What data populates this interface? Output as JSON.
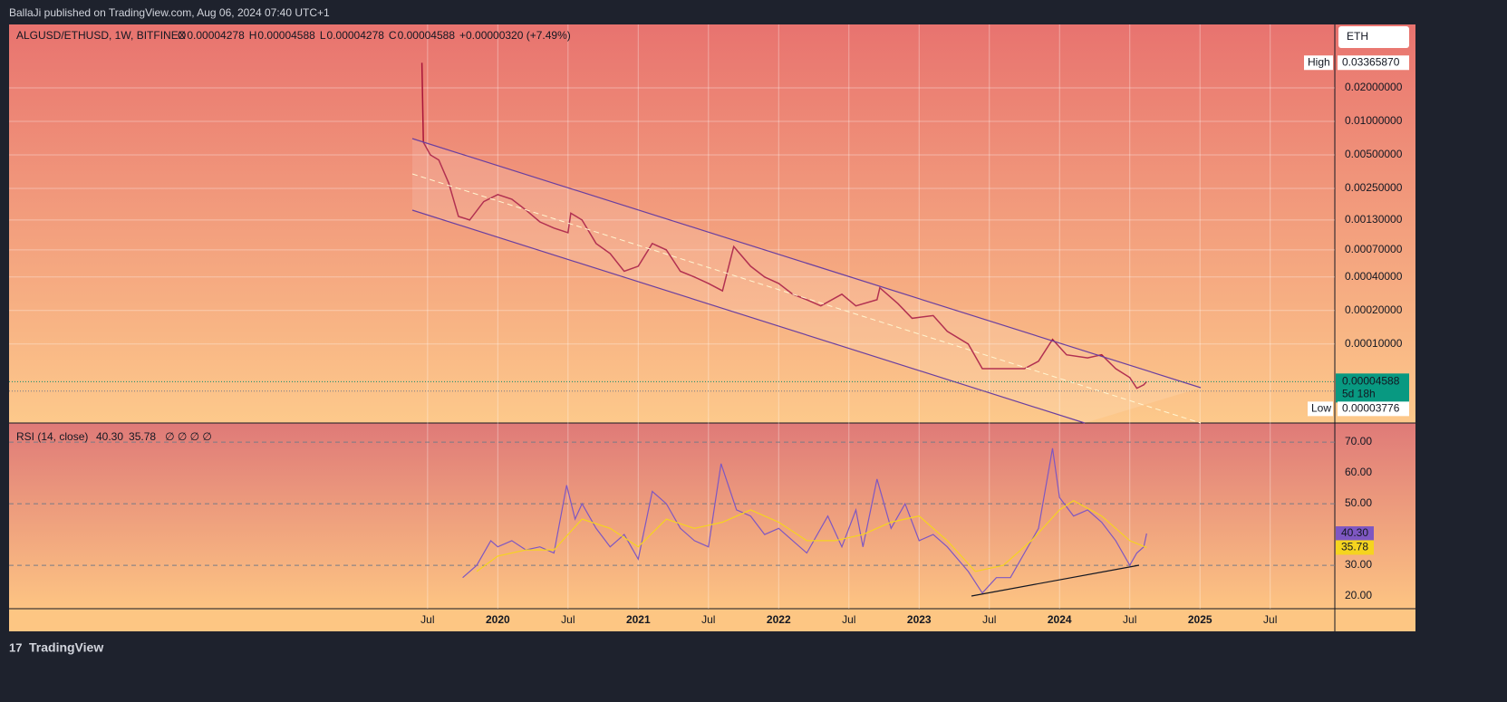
{
  "header": "BallaJi published on TradingView.com, Aug 06, 2024 07:40 UTC+1",
  "footer": "TradingView",
  "currency": "ETH",
  "chart_data": [
    {
      "type": "line",
      "title": "ALGUSD/ETHUSD, 1W, BITFINEX",
      "ohlc": [
        {
          "label": "O",
          "value": "0.00004278"
        },
        {
          "label": "H",
          "value": "0.00004588"
        },
        {
          "label": "L",
          "value": "0.00004278"
        },
        {
          "label": "C",
          "value": "0.00004588"
        }
      ],
      "change": "+0.00000320 (+7.49%)",
      "log_scale": true,
      "grid": true,
      "xlim": [
        2016.52,
        2025.96
      ],
      "xticks": [
        {
          "value": 2019.5,
          "label": "Jul"
        },
        2020,
        {
          "value": 2020.5,
          "label": "Jul"
        },
        2021,
        {
          "value": 2021.5,
          "label": "Jul"
        },
        2022,
        {
          "value": 2022.5,
          "label": "Jul"
        },
        2023,
        {
          "value": 2023.5,
          "label": "Jul"
        },
        2024,
        {
          "value": 2024.5,
          "label": "Jul"
        },
        2025,
        {
          "value": 2025.5,
          "label": "Jul"
        }
      ],
      "ylim": [
        1.95e-05,
        0.0743
      ],
      "yticks": [
        {
          "value": 0.02,
          "label": "0.02000000"
        },
        {
          "value": 0.01,
          "label": "0.01000000"
        },
        {
          "value": 0.005,
          "label": "0.00500000"
        },
        {
          "value": 0.0025,
          "label": "0.00250000"
        },
        {
          "value": 0.0013,
          "label": "0.00130000"
        },
        {
          "value": 0.0007,
          "label": "0.00070000"
        },
        {
          "value": 0.0004,
          "label": "0.00040000"
        },
        {
          "value": 0.0002,
          "label": "0.00020000"
        },
        {
          "value": 0.0001,
          "label": "0.00010000"
        }
      ],
      "high": {
        "label": "High",
        "value": 0.0336587,
        "value_label": "0.03365870"
      },
      "low": {
        "label": "Low",
        "value": 3.776e-05,
        "value_label": "0.00003776"
      },
      "last": {
        "value": 4.588e-05,
        "value_label": "0.00004588",
        "countdown": "5d 18h"
      },
      "series": [
        {
          "color": "#a8153a",
          "x": [
            2019.46,
            2019.47,
            2019.52,
            2019.58,
            2019.65,
            2019.72,
            2019.8,
            2019.9,
            2020.0,
            2020.1,
            2020.2,
            2020.3,
            2020.4,
            2020.5,
            2020.52,
            2020.6,
            2020.7,
            2020.8,
            2020.9,
            2021.0,
            2021.1,
            2021.2,
            2021.3,
            2021.4,
            2021.5,
            2021.6,
            2021.68,
            2021.8,
            2021.9,
            2022.0,
            2022.1,
            2022.2,
            2022.3,
            2022.45,
            2022.55,
            2022.7,
            2022.72,
            2022.85,
            2022.95,
            2023.1,
            2023.2,
            2023.35,
            2023.45,
            2023.6,
            2023.75,
            2023.85,
            2023.95,
            2024.05,
            2024.2,
            2024.3,
            2024.4,
            2024.5,
            2024.55,
            2024.6,
            2024.62
          ],
          "values": [
            0.0336,
            0.0065,
            0.005,
            0.0045,
            0.0028,
            0.0014,
            0.0013,
            0.0019,
            0.0022,
            0.002,
            0.0016,
            0.00125,
            0.0011,
            0.001,
            0.0015,
            0.0013,
            0.0008,
            0.00065,
            0.00045,
            0.0005,
            0.0008,
            0.0007,
            0.00045,
            0.0004,
            0.00035,
            0.0003,
            0.00075,
            0.0005,
            0.0004,
            0.00035,
            0.00028,
            0.00025,
            0.00022,
            0.00028,
            0.00022,
            0.00025,
            0.00032,
            0.00023,
            0.00017,
            0.00018,
            0.00013,
            0.0001,
            6e-05,
            6e-05,
            6e-05,
            7e-05,
            0.00011,
            8e-05,
            7.5e-05,
            8e-05,
            6e-05,
            5e-05,
            4e-05,
            4.3e-05,
            4.59e-05
          ]
        }
      ]
    },
    {
      "type": "line",
      "title": "RSI (14, close)",
      "legend_icons": "∅ ∅ ∅ ∅",
      "xlim": [
        2016.52,
        2025.96
      ],
      "ylim": [
        15.9,
        76.2
      ],
      "yticks": [
        {
          "value": 70,
          "label": "70.00"
        },
        {
          "value": 60,
          "label": "60.00"
        },
        {
          "value": 50,
          "label": "50.00"
        },
        {
          "value": 30,
          "label": "30.00"
        },
        {
          "value": 20,
          "label": "20.00"
        }
      ],
      "bands": [
        70,
        50,
        30
      ],
      "series": [
        {
          "color": "#7e57c2",
          "value_label": "40.30",
          "x": [
            2019.75,
            2019.85,
            2019.95,
            2020.0,
            2020.1,
            2020.2,
            2020.3,
            2020.4,
            2020.49,
            2020.55,
            2020.6,
            2020.7,
            2020.8,
            2020.9,
            2021.0,
            2021.1,
            2021.2,
            2021.3,
            2021.4,
            2021.5,
            2021.59,
            2021.7,
            2021.8,
            2021.9,
            2022.0,
            2022.1,
            2022.2,
            2022.35,
            2022.45,
            2022.55,
            2022.6,
            2022.7,
            2022.8,
            2022.9,
            2023.0,
            2023.1,
            2023.2,
            2023.35,
            2023.45,
            2023.55,
            2023.65,
            2023.75,
            2023.85,
            2023.95,
            2024.0,
            2024.1,
            2024.2,
            2024.3,
            2024.4,
            2024.5,
            2024.55,
            2024.6,
            2024.62
          ],
          "values": [
            26,
            30,
            38,
            36,
            38,
            35,
            36,
            34,
            56,
            45,
            50,
            42,
            36,
            40,
            32,
            54,
            50,
            42,
            38,
            36,
            63,
            48,
            46,
            40,
            42,
            38,
            34,
            46,
            36,
            48,
            36,
            58,
            42,
            50,
            38,
            40,
            36,
            28,
            21,
            26,
            26,
            34,
            42,
            68,
            52,
            46,
            48,
            44,
            38,
            30,
            34,
            36,
            40.3
          ]
        },
        {
          "color": "#f5d41f",
          "value_label": "35.78",
          "x": [
            2019.85,
            2020.0,
            2020.2,
            2020.4,
            2020.6,
            2020.8,
            2021.0,
            2021.2,
            2021.4,
            2021.6,
            2021.8,
            2022.0,
            2022.2,
            2022.4,
            2022.6,
            2022.8,
            2023.0,
            2023.2,
            2023.4,
            2023.6,
            2023.8,
            2024.0,
            2024.1,
            2024.3,
            2024.5,
            2024.62
          ],
          "values": [
            28,
            33,
            35,
            35,
            45,
            42,
            36,
            45,
            42,
            44,
            48,
            44,
            38,
            38,
            40,
            44,
            46,
            38,
            28,
            30,
            38,
            48,
            51,
            46,
            38,
            35.78
          ]
        }
      ]
    }
  ]
}
